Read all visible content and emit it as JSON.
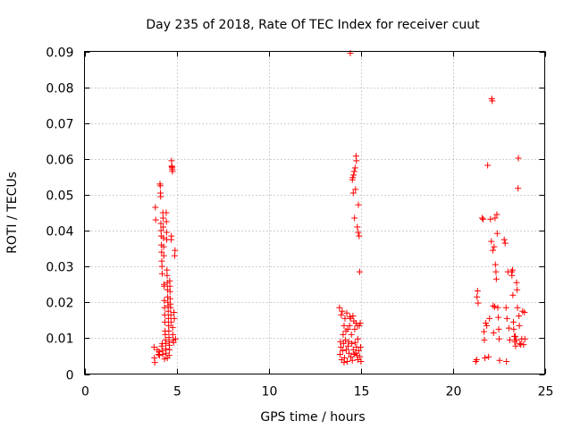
{
  "chart_data": {
    "type": "scatter",
    "title": "Day 235 of 2018, Rate Of TEC Index for receiver cuut",
    "xlabel": "GPS time / hours",
    "ylabel": "ROTI / TECUs",
    "xlim": [
      0,
      25
    ],
    "ylim": [
      0,
      0.09
    ],
    "x_ticks": [
      0,
      5,
      10,
      15,
      20,
      25
    ],
    "y_ticks": [
      0,
      0.01,
      0.02,
      0.03,
      0.04,
      0.05,
      0.06,
      0.07,
      0.08,
      0.09
    ],
    "x_tick_labels": [
      "0",
      "5",
      "10",
      "15",
      "20",
      "25"
    ],
    "y_tick_labels": [
      "0",
      "0.01",
      "0.02",
      "0.03",
      "0.04",
      "0.05",
      "0.06",
      "0.07",
      "0.08",
      "0.09"
    ],
    "grid": true,
    "marker": "plus",
    "color": "#ff0000",
    "points": [
      [
        3.78,
        0.0075
      ],
      [
        3.8,
        0.0045
      ],
      [
        3.82,
        0.0032
      ],
      [
        3.85,
        0.0465
      ],
      [
        3.87,
        0.043
      ],
      [
        3.95,
        0.0068
      ],
      [
        4.02,
        0.0055
      ],
      [
        4.05,
        0.0062
      ],
      [
        4.08,
        0.0052
      ],
      [
        4.1,
        0.053
      ],
      [
        4.12,
        0.0525
      ],
      [
        4.13,
        0.0505
      ],
      [
        4.14,
        0.0495
      ],
      [
        4.15,
        0.042
      ],
      [
        4.16,
        0.04
      ],
      [
        4.17,
        0.0385
      ],
      [
        4.18,
        0.036
      ],
      [
        4.19,
        0.034
      ],
      [
        4.2,
        0.0315
      ],
      [
        4.2,
        0.0078
      ],
      [
        4.21,
        0.03
      ],
      [
        4.22,
        0.028
      ],
      [
        4.23,
        0.0085
      ],
      [
        4.24,
        0.0065
      ],
      [
        4.25,
        0.0055
      ],
      [
        4.26,
        0.045
      ],
      [
        4.27,
        0.0435
      ],
      [
        4.28,
        0.041
      ],
      [
        4.29,
        0.038
      ],
      [
        4.3,
        0.0355
      ],
      [
        4.31,
        0.033
      ],
      [
        4.32,
        0.025
      ],
      [
        4.33,
        0.0245
      ],
      [
        4.34,
        0.0205
      ],
      [
        4.35,
        0.0185
      ],
      [
        4.36,
        0.0165
      ],
      [
        4.37,
        0.0145
      ],
      [
        4.38,
        0.012
      ],
      [
        4.39,
        0.011
      ],
      [
        4.4,
        0.0095
      ],
      [
        4.41,
        0.0085
      ],
      [
        4.42,
        0.007
      ],
      [
        4.43,
        0.0058
      ],
      [
        4.44,
        0.045
      ],
      [
        4.45,
        0.0425
      ],
      [
        4.46,
        0.0395
      ],
      [
        4.47,
        0.0375
      ],
      [
        4.48,
        0.029
      ],
      [
        4.49,
        0.0275
      ],
      [
        4.5,
        0.0255
      ],
      [
        4.51,
        0.0235
      ],
      [
        4.52,
        0.0215
      ],
      [
        4.53,
        0.02
      ],
      [
        4.54,
        0.019
      ],
      [
        4.55,
        0.0175
      ],
      [
        4.56,
        0.0155
      ],
      [
        4.57,
        0.0135
      ],
      [
        4.58,
        0.012
      ],
      [
        4.59,
        0.0102
      ],
      [
        4.6,
        0.009
      ],
      [
        4.61,
        0.008
      ],
      [
        4.62,
        0.0068
      ],
      [
        4.63,
        0.026
      ],
      [
        4.64,
        0.0245
      ],
      [
        4.65,
        0.023
      ],
      [
        4.66,
        0.021
      ],
      [
        4.67,
        0.0195
      ],
      [
        4.68,
        0.0185
      ],
      [
        4.69,
        0.0165
      ],
      [
        4.7,
        0.0145
      ],
      [
        4.71,
        0.0375
      ],
      [
        4.72,
        0.0385
      ],
      [
        4.73,
        0.0595
      ],
      [
        4.74,
        0.058
      ],
      [
        4.75,
        0.0578
      ],
      [
        4.76,
        0.0575
      ],
      [
        4.77,
        0.057
      ],
      [
        4.78,
        0.0565
      ],
      [
        4.79,
        0.013
      ],
      [
        4.8,
        0.011
      ],
      [
        4.82,
        0.0095
      ],
      [
        4.84,
        0.0088
      ],
      [
        4.86,
        0.0172
      ],
      [
        4.88,
        0.0155
      ],
      [
        4.9,
        0.033
      ],
      [
        4.92,
        0.0345
      ],
      [
        4.95,
        0.0098
      ],
      [
        4.5,
        0.0045
      ],
      [
        4.35,
        0.0042
      ],
      [
        4.6,
        0.0052
      ],
      [
        13.85,
        0.0185
      ],
      [
        13.88,
        0.0055
      ],
      [
        13.9,
        0.009
      ],
      [
        13.93,
        0.0075
      ],
      [
        13.95,
        0.0165
      ],
      [
        13.97,
        0.004
      ],
      [
        14.0,
        0.0175
      ],
      [
        14.02,
        0.0065
      ],
      [
        14.05,
        0.011
      ],
      [
        14.07,
        0.0085
      ],
      [
        14.1,
        0.0135
      ],
      [
        14.12,
        0.0045
      ],
      [
        14.15,
        0.0155
      ],
      [
        14.17,
        0.0095
      ],
      [
        14.2,
        0.012
      ],
      [
        14.22,
        0.0068
      ],
      [
        14.25,
        0.017
      ],
      [
        14.27,
        0.0035
      ],
      [
        14.3,
        0.0125
      ],
      [
        14.32,
        0.0078
      ],
      [
        14.35,
        0.009
      ],
      [
        14.37,
        0.0058
      ],
      [
        14.4,
        0.0135
      ],
      [
        14.42,
        0.016
      ],
      [
        14.44,
        0.0895
      ],
      [
        14.45,
        0.0155
      ],
      [
        14.47,
        0.0048
      ],
      [
        14.5,
        0.011
      ],
      [
        14.52,
        0.0085
      ],
      [
        14.55,
        0.0542
      ],
      [
        14.57,
        0.0548
      ],
      [
        14.58,
        0.0162
      ],
      [
        14.6,
        0.0505
      ],
      [
        14.6,
        0.0068
      ],
      [
        14.62,
        0.0555
      ],
      [
        14.63,
        0.0148
      ],
      [
        14.65,
        0.0565
      ],
      [
        14.65,
        0.0055
      ],
      [
        14.67,
        0.0435
      ],
      [
        14.68,
        0.0125
      ],
      [
        14.7,
        0.0575
      ],
      [
        14.7,
        0.0088
      ],
      [
        14.72,
        0.0515
      ],
      [
        14.73,
        0.0058
      ],
      [
        14.75,
        0.0608
      ],
      [
        14.75,
        0.0142
      ],
      [
        14.77,
        0.0595
      ],
      [
        14.78,
        0.0075
      ],
      [
        14.8,
        0.0052
      ],
      [
        14.82,
        0.041
      ],
      [
        14.83,
        0.0135
      ],
      [
        14.85,
        0.0098
      ],
      [
        14.87,
        0.0395
      ],
      [
        14.88,
        0.0472
      ],
      [
        14.9,
        0.0065
      ],
      [
        14.92,
        0.0385
      ],
      [
        14.93,
        0.0135
      ],
      [
        14.95,
        0.0285
      ],
      [
        14.96,
        0.0048
      ],
      [
        14.98,
        0.0142
      ],
      [
        15.0,
        0.0075
      ],
      [
        15.02,
        0.0035
      ],
      [
        14.85,
        0.004
      ],
      [
        14.55,
        0.0038
      ],
      [
        14.1,
        0.0032
      ],
      [
        21.25,
        0.0035
      ],
      [
        21.3,
        0.004
      ],
      [
        21.32,
        0.0215
      ],
      [
        21.35,
        0.0232
      ],
      [
        21.38,
        0.0198
      ],
      [
        21.6,
        0.0435
      ],
      [
        21.65,
        0.0432
      ],
      [
        21.7,
        0.0118
      ],
      [
        21.72,
        0.0095
      ],
      [
        21.75,
        0.0045
      ],
      [
        21.8,
        0.0142
      ],
      [
        21.85,
        0.0135
      ],
      [
        21.9,
        0.0582
      ],
      [
        21.95,
        0.0048
      ],
      [
        22.0,
        0.0155
      ],
      [
        22.05,
        0.0432
      ],
      [
        22.1,
        0.037
      ],
      [
        22.12,
        0.0768
      ],
      [
        22.15,
        0.0762
      ],
      [
        22.18,
        0.0345
      ],
      [
        22.2,
        0.019
      ],
      [
        22.22,
        0.0115
      ],
      [
        22.25,
        0.0355
      ],
      [
        22.28,
        0.0188
      ],
      [
        22.3,
        0.0435
      ],
      [
        22.32,
        0.0305
      ],
      [
        22.35,
        0.0285
      ],
      [
        22.37,
        0.0265
      ],
      [
        22.4,
        0.0445
      ],
      [
        22.42,
        0.0392
      ],
      [
        22.45,
        0.0185
      ],
      [
        22.48,
        0.0158
      ],
      [
        22.5,
        0.0125
      ],
      [
        22.52,
        0.0098
      ],
      [
        22.55,
        0.0038
      ],
      [
        22.8,
        0.0375
      ],
      [
        22.85,
        0.0365
      ],
      [
        22.9,
        0.0185
      ],
      [
        22.92,
        0.0035
      ],
      [
        22.95,
        0.0155
      ],
      [
        23.0,
        0.0285
      ],
      [
        23.05,
        0.0128
      ],
      [
        23.1,
        0.0095
      ],
      [
        23.2,
        0.0285
      ],
      [
        23.22,
        0.0275
      ],
      [
        23.25,
        0.029
      ],
      [
        23.27,
        0.022
      ],
      [
        23.3,
        0.0145
      ],
      [
        23.32,
        0.0125
      ],
      [
        23.35,
        0.0105
      ],
      [
        23.37,
        0.009
      ],
      [
        23.4,
        0.0105
      ],
      [
        23.42,
        0.0078
      ],
      [
        23.45,
        0.0095
      ],
      [
        23.47,
        0.0255
      ],
      [
        23.5,
        0.0235
      ],
      [
        23.52,
        0.0185
      ],
      [
        23.55,
        0.0518
      ],
      [
        23.57,
        0.0602
      ],
      [
        23.6,
        0.0162
      ],
      [
        23.62,
        0.0135
      ],
      [
        23.65,
        0.0085
      ],
      [
        23.7,
        0.0082
      ],
      [
        23.75,
        0.0098
      ],
      [
        23.8,
        0.0175
      ],
      [
        23.85,
        0.0082
      ],
      [
        23.9,
        0.0172
      ],
      [
        23.92,
        0.0098
      ]
    ]
  }
}
